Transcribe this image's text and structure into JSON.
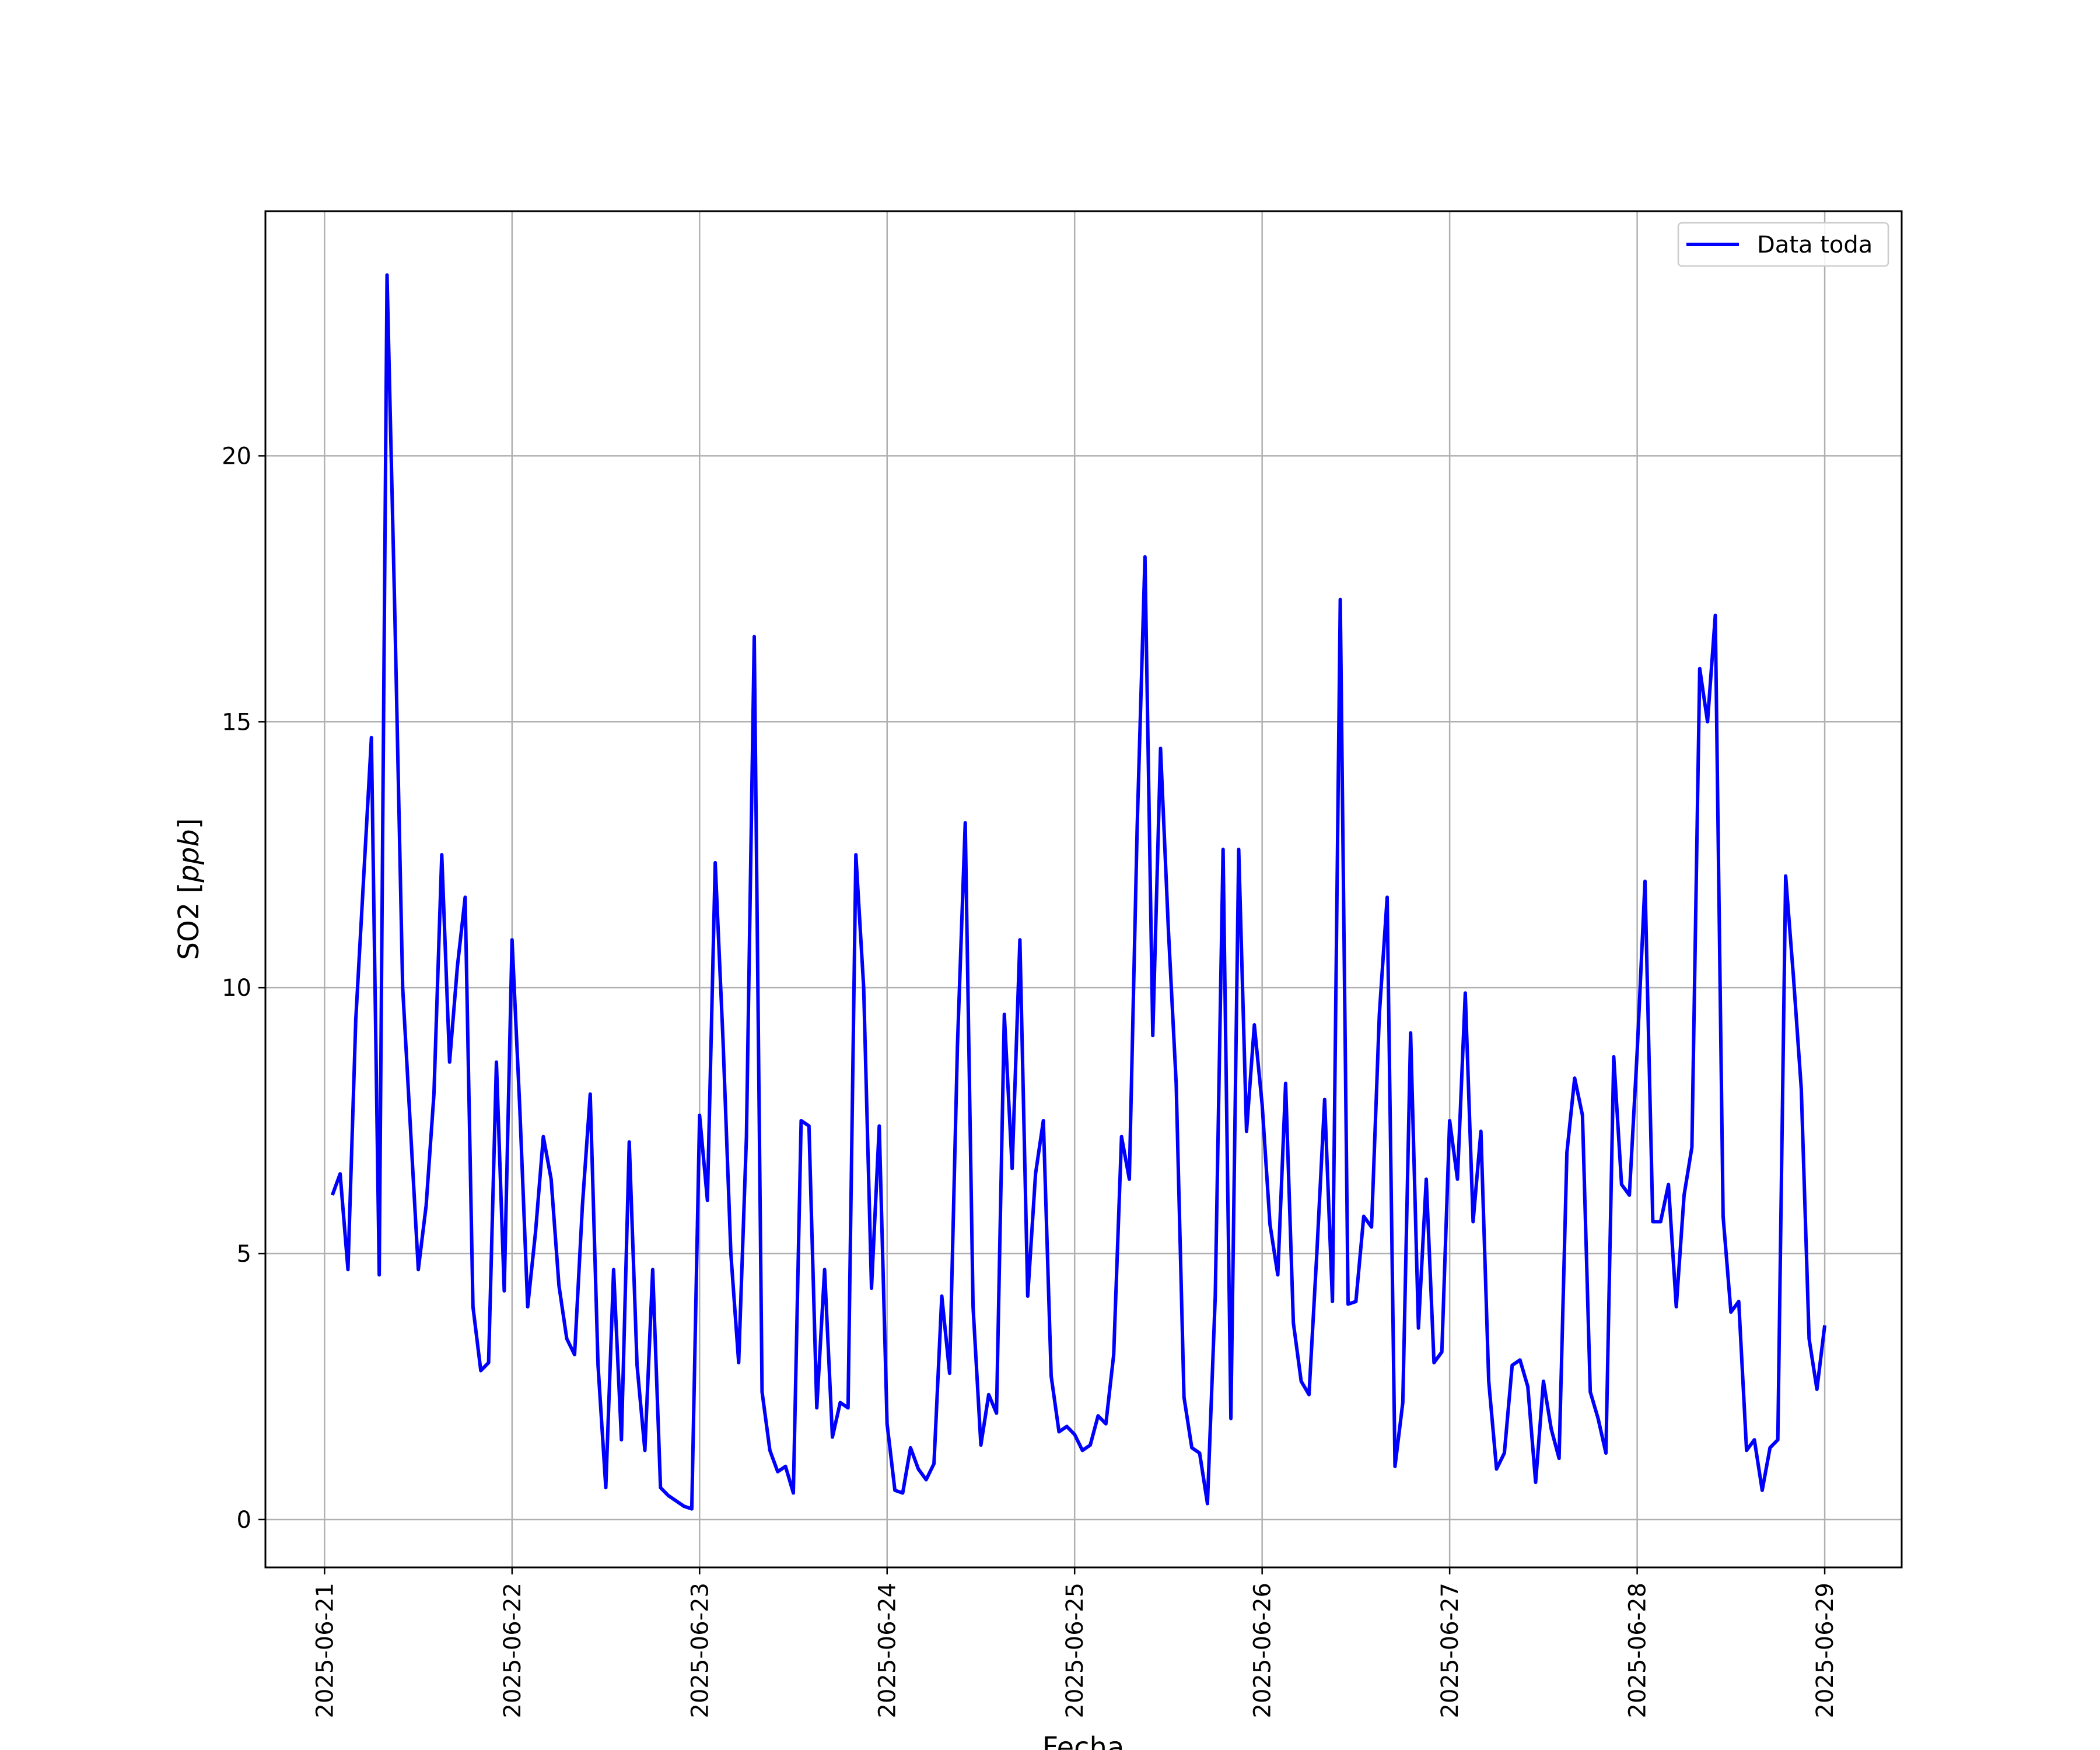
{
  "chart_data": {
    "type": "line",
    "title": "",
    "xlabel": "Fecha",
    "ylabel_prefix": "SO2 [",
    "ylabel_unit": "ppb",
    "ylabel_suffix": "]",
    "x_ticks": [
      "2025-06-21",
      "2025-06-22",
      "2025-06-23",
      "2025-06-24",
      "2025-06-25",
      "2025-06-26",
      "2025-06-27",
      "2025-06-28",
      "2025-06-29"
    ],
    "y_ticks": [
      0,
      5,
      10,
      15,
      20
    ],
    "xlim": [
      "2025-06-20T16:26",
      "2025-06-29T09:51"
    ],
    "ylim": [
      -0.9,
      24.6
    ],
    "grid": true,
    "legend": "top-right",
    "series": [
      {
        "name": "Data toda",
        "color": "#0000ff",
        "x": [
          "2025-06-21T01:00",
          "2025-06-21T02:00",
          "2025-06-21T03:00",
          "2025-06-21T04:00",
          "2025-06-21T06:00",
          "2025-06-21T07:00",
          "2025-06-21T08:00",
          "2025-06-21T09:00",
          "2025-06-21T10:00",
          "2025-06-21T12:00",
          "2025-06-21T13:00",
          "2025-06-21T14:00",
          "2025-06-21T15:00",
          "2025-06-21T16:00",
          "2025-06-21T17:00",
          "2025-06-21T18:00",
          "2025-06-21T19:00",
          "2025-06-21T20:00",
          "2025-06-21T21:00",
          "2025-06-21T22:00",
          "2025-06-21T23:00",
          "2025-06-22T00:00",
          "2025-06-22T01:00",
          "2025-06-22T02:00",
          "2025-06-22T03:00",
          "2025-06-22T04:00",
          "2025-06-22T05:00",
          "2025-06-22T06:00",
          "2025-06-22T07:00",
          "2025-06-22T08:00",
          "2025-06-22T09:00",
          "2025-06-22T10:00",
          "2025-06-22T11:00",
          "2025-06-22T12:00",
          "2025-06-22T13:00",
          "2025-06-22T14:00",
          "2025-06-22T15:00",
          "2025-06-22T16:00",
          "2025-06-22T17:00",
          "2025-06-22T18:00",
          "2025-06-22T19:00",
          "2025-06-22T20:00",
          "2025-06-22T21:00",
          "2025-06-22T22:00",
          "2025-06-22T23:00",
          "2025-06-23T00:00",
          "2025-06-23T01:00",
          "2025-06-23T02:00",
          "2025-06-23T03:00",
          "2025-06-23T04:00",
          "2025-06-23T05:00",
          "2025-06-23T06:00",
          "2025-06-23T07:00",
          "2025-06-23T08:00",
          "2025-06-23T09:00",
          "2025-06-23T10:00",
          "2025-06-23T11:00",
          "2025-06-23T12:00",
          "2025-06-23T13:00",
          "2025-06-23T14:00",
          "2025-06-23T15:00",
          "2025-06-23T16:00",
          "2025-06-23T17:00",
          "2025-06-23T18:00",
          "2025-06-23T19:00",
          "2025-06-23T20:00",
          "2025-06-23T21:00",
          "2025-06-23T22:00",
          "2025-06-23T23:00",
          "2025-06-24T00:00",
          "2025-06-24T01:00",
          "2025-06-24T02:00",
          "2025-06-24T03:00",
          "2025-06-24T04:00",
          "2025-06-24T05:00",
          "2025-06-24T06:00",
          "2025-06-24T07:00",
          "2025-06-24T08:00",
          "2025-06-24T09:00",
          "2025-06-24T10:00",
          "2025-06-24T11:00",
          "2025-06-24T12:00",
          "2025-06-24T13:00",
          "2025-06-24T14:00",
          "2025-06-24T15:00",
          "2025-06-24T16:00",
          "2025-06-24T17:00",
          "2025-06-24T18:00",
          "2025-06-24T19:00",
          "2025-06-24T20:00",
          "2025-06-24T21:00",
          "2025-06-24T22:00",
          "2025-06-24T23:00",
          "2025-06-25T00:00",
          "2025-06-25T01:00",
          "2025-06-25T02:00",
          "2025-06-25T03:00",
          "2025-06-25T04:00",
          "2025-06-25T05:00",
          "2025-06-25T06:00",
          "2025-06-25T07:00",
          "2025-06-25T08:00",
          "2025-06-25T09:00",
          "2025-06-25T10:00",
          "2025-06-25T11:00",
          "2025-06-25T12:00",
          "2025-06-25T13:00",
          "2025-06-25T14:00",
          "2025-06-25T15:00",
          "2025-06-25T16:00",
          "2025-06-25T17:00",
          "2025-06-25T18:00",
          "2025-06-25T19:00",
          "2025-06-25T20:00",
          "2025-06-25T21:00",
          "2025-06-25T22:00",
          "2025-06-25T23:00",
          "2025-06-26T00:00",
          "2025-06-26T01:00",
          "2025-06-26T02:00",
          "2025-06-26T03:00",
          "2025-06-26T04:00",
          "2025-06-26T05:00",
          "2025-06-26T06:00",
          "2025-06-26T07:00",
          "2025-06-26T08:00",
          "2025-06-26T09:00",
          "2025-06-26T10:00",
          "2025-06-26T11:00",
          "2025-06-26T12:00",
          "2025-06-26T13:00",
          "2025-06-26T14:00",
          "2025-06-26T15:00",
          "2025-06-26T16:00",
          "2025-06-26T17:00",
          "2025-06-26T18:00",
          "2025-06-26T19:00",
          "2025-06-26T20:00",
          "2025-06-26T21:00",
          "2025-06-26T22:00",
          "2025-06-26T23:00",
          "2025-06-27T00:00",
          "2025-06-27T01:00",
          "2025-06-27T02:00",
          "2025-06-27T03:00",
          "2025-06-27T04:00",
          "2025-06-27T05:00",
          "2025-06-27T06:00",
          "2025-06-27T07:00",
          "2025-06-27T08:00",
          "2025-06-27T09:00",
          "2025-06-27T10:00",
          "2025-06-27T11:00",
          "2025-06-27T12:00",
          "2025-06-27T13:00",
          "2025-06-27T14:00",
          "2025-06-27T15:00",
          "2025-06-27T16:00",
          "2025-06-27T17:00",
          "2025-06-27T18:00",
          "2025-06-27T19:00",
          "2025-06-27T20:00",
          "2025-06-27T21:00",
          "2025-06-27T22:00",
          "2025-06-27T23:00",
          "2025-06-28T00:00",
          "2025-06-28T01:00",
          "2025-06-28T02:00",
          "2025-06-28T03:00",
          "2025-06-28T04:00",
          "2025-06-28T05:00",
          "2025-06-28T06:00",
          "2025-06-28T07:00",
          "2025-06-28T08:00",
          "2025-06-28T09:00",
          "2025-06-28T10:00",
          "2025-06-28T11:00",
          "2025-06-28T12:00",
          "2025-06-28T13:00",
          "2025-06-28T14:00",
          "2025-06-28T15:00",
          "2025-06-28T16:00",
          "2025-06-28T17:00",
          "2025-06-28T18:00",
          "2025-06-28T19:00",
          "2025-06-28T20:00",
          "2025-06-28T21:00",
          "2025-06-28T22:00",
          "2025-06-28T23:00",
          "2025-06-29T00:00"
        ],
        "values": [
          6.1,
          6.5,
          4.7,
          9.4,
          14.7,
          4.6,
          23.4,
          17.0,
          10.0,
          4.7,
          5.9,
          8.0,
          12.5,
          8.6,
          10.4,
          11.7,
          4.0,
          2.8,
          2.95,
          8.6,
          4.3,
          10.9,
          7.7,
          4.0,
          5.4,
          7.2,
          6.4,
          4.4,
          3.4,
          3.1,
          5.9,
          8.0,
          2.9,
          0.6,
          4.7,
          1.5,
          7.1,
          2.9,
          1.3,
          4.7,
          0.6,
          0.45,
          0.35,
          0.25,
          0.2,
          7.6,
          6.0,
          12.35,
          9.0,
          5.0,
          2.95,
          7.2,
          16.6,
          2.4,
          1.3,
          0.9,
          1.0,
          0.5,
          7.5,
          7.4,
          2.1,
          4.7,
          1.55,
          2.2,
          2.1,
          12.5,
          10.0,
          4.35,
          7.4,
          1.8,
          0.55,
          0.5,
          1.35,
          0.95,
          0.75,
          1.05,
          4.2,
          2.75,
          8.9,
          13.1,
          4.0,
          1.4,
          2.35,
          2.0,
          9.5,
          6.6,
          10.9,
          4.2,
          6.5,
          7.5,
          2.7,
          1.65,
          1.75,
          1.6,
          1.3,
          1.4,
          1.95,
          1.8,
          3.1,
          7.2,
          6.4,
          13.0,
          18.1,
          9.1,
          14.5,
          11.1,
          8.2,
          2.3,
          1.35,
          1.25,
          0.3,
          4.2,
          12.6,
          1.9,
          12.6,
          7.3,
          9.3,
          7.8,
          5.55,
          4.6,
          8.2,
          3.7,
          2.6,
          2.35,
          5.0,
          7.9,
          4.1,
          17.3,
          4.05,
          4.1,
          5.7,
          5.5,
          9.5,
          11.7,
          1.0,
          2.2,
          9.15,
          3.6,
          6.4,
          2.95,
          3.15,
          7.5,
          6.4,
          9.9,
          5.6,
          7.3,
          2.6,
          0.95,
          1.25,
          2.9,
          3.0,
          2.5,
          0.7,
          2.6,
          1.7,
          1.15,
          6.9,
          8.3,
          7.6,
          2.4,
          1.9,
          1.25,
          8.7,
          6.3,
          6.1,
          8.8,
          12.0,
          5.6,
          5.6,
          6.3,
          4.0,
          6.1,
          7.0,
          16.0,
          15.0,
          17.0,
          5.7,
          3.9,
          4.1,
          1.3,
          1.5,
          0.55,
          1.35,
          1.5,
          12.1,
          10.2,
          8.1,
          3.4,
          2.45,
          3.65
        ]
      }
    ]
  }
}
